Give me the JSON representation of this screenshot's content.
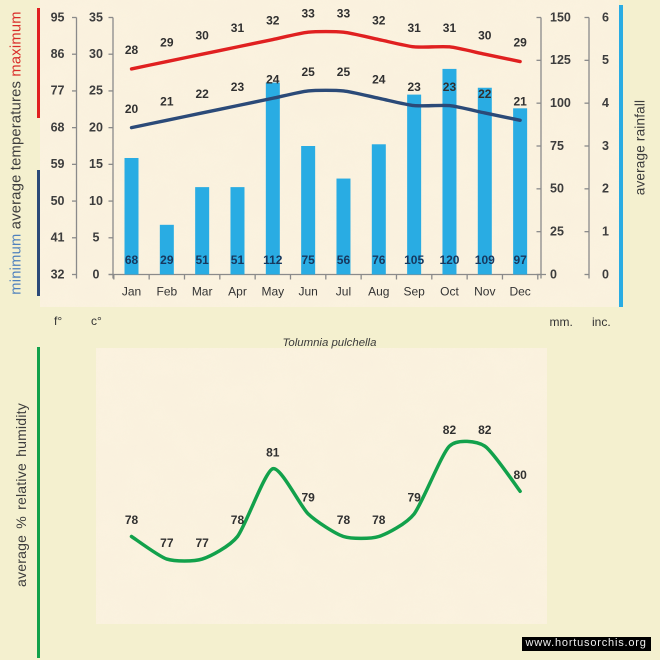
{
  "page": {
    "background_color": "#f4f0cf",
    "texture_color": "#fbf1de",
    "watermark": "www.hortusorchis.org"
  },
  "legends": {
    "temperatures": {
      "parts": [
        {
          "text": "minimum",
          "color": "#4f81bd"
        },
        {
          "text": " average temperatures ",
          "color": "#3d3d3d"
        },
        {
          "text": "maximum",
          "color": "#d92b28"
        }
      ],
      "min_line_color": "#2b4a78",
      "max_line_color": "#e02020"
    },
    "rainfall": {
      "text": "average rainfall",
      "line_color": "#29ace3"
    },
    "humidity": {
      "text": "average % relative humidity",
      "line_color": "#12a14b"
    }
  },
  "units": {
    "fahrenheit": "f°",
    "celsius": "c°",
    "millimeters": "mm.",
    "inches": "inc."
  },
  "chart_data": [
    {
      "type": "combo",
      "title": "",
      "categories": [
        "Jan",
        "Feb",
        "Mar",
        "Apr",
        "May",
        "Jun",
        "Jul",
        "Aug",
        "Sep",
        "Oct",
        "Nov",
        "Dec"
      ],
      "series": [
        {
          "name": "maximum average temperature",
          "type": "line",
          "unit": "°C",
          "color": "#e02020",
          "values": [
            28,
            29,
            30,
            31,
            32,
            33,
            33,
            32,
            31,
            31,
            30,
            29
          ]
        },
        {
          "name": "minimum average temperature",
          "type": "line",
          "unit": "°C",
          "color": "#2b4a78",
          "values": [
            20,
            21,
            22,
            23,
            24,
            25,
            25,
            24,
            23,
            23,
            22,
            21
          ]
        },
        {
          "name": "average rainfall",
          "type": "bar",
          "unit": "mm",
          "color": "#29ace3",
          "values": [
            68,
            29,
            51,
            51,
            112,
            75,
            56,
            76,
            105,
            120,
            109,
            97
          ]
        }
      ],
      "axes": {
        "fahrenheit_ticks": [
          95,
          86,
          77,
          68,
          59,
          50,
          41,
          32
        ],
        "celsius_ticks": [
          35,
          30,
          25,
          20,
          15,
          10,
          5,
          0
        ],
        "mm_ticks": [
          150,
          125,
          100,
          75,
          50,
          25,
          0
        ],
        "inch_ticks": [
          6,
          5,
          4,
          3,
          2,
          1,
          0
        ],
        "temp_range_c": [
          0,
          35
        ],
        "rain_range_mm": [
          0,
          150
        ],
        "label_color": "#3d3d3d",
        "axis_color": "#8a8a8a",
        "data_label_color": "#303030",
        "bar_label_color": "#17375d"
      }
    },
    {
      "type": "line",
      "title": "Tolumnia pulchella",
      "categories": [
        "Jan",
        "Feb",
        "Mar",
        "Apr",
        "May",
        "Jun",
        "Jul",
        "Aug",
        "Sep",
        "Oct",
        "Nov",
        "Dec"
      ],
      "series": [
        {
          "name": "average % relative humidity",
          "unit": "%",
          "color": "#12a14b",
          "values": [
            78,
            77,
            77,
            78,
            81,
            79,
            78,
            78,
            79,
            82,
            82,
            80
          ]
        }
      ],
      "ylim": [
        74,
        84
      ],
      "label_color": "#303030"
    }
  ]
}
